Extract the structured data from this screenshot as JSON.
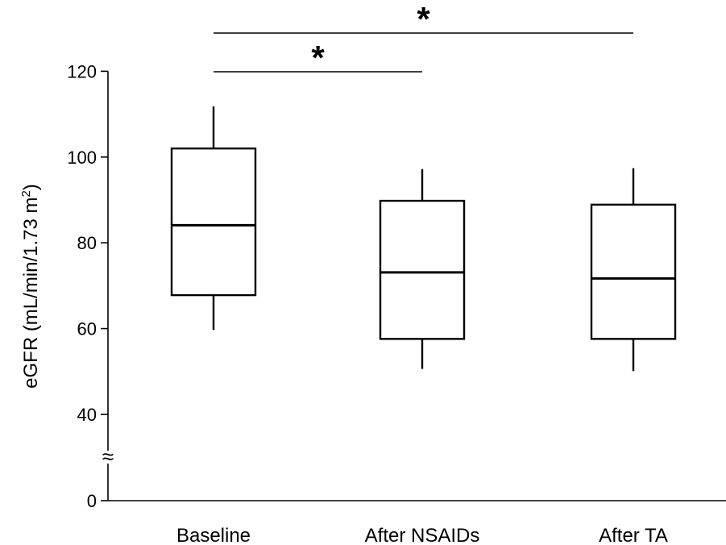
{
  "chart_data": {
    "type": "box",
    "title": "",
    "xlabel": "",
    "ylabel": "eGFR (mL/min/1.73 m²)",
    "ylabel_parts": {
      "main": "eGFR (mL/min/1.73 m",
      "superscript": "2",
      "close": ")"
    },
    "ylim": [
      0,
      120
    ],
    "axis_break": "≈",
    "yticks": [
      0,
      40,
      60,
      80,
      100,
      120
    ],
    "yticks_labels": [
      "0",
      "40",
      "60",
      "80",
      "100",
      "120"
    ],
    "categories": [
      "Baseline",
      "After NSAIDs",
      "After TA"
    ],
    "boxes": [
      {
        "category": "Baseline",
        "whisker_low": 59.7,
        "q1": 67.8,
        "median": 84.1,
        "q3": 102.0,
        "whisker_high": 111.8
      },
      {
        "category": "After NSAIDs",
        "whisker_low": 50.6,
        "q1": 57.6,
        "median": 73.1,
        "q3": 89.8,
        "whisker_high": 97.2
      },
      {
        "category": "After TA",
        "whisker_low": 50.1,
        "q1": 57.6,
        "median": 71.7,
        "q3": 88.9,
        "whisker_high": 97.4
      }
    ],
    "annotations": [
      {
        "from": "Baseline",
        "to": "After TA",
        "label": "*"
      },
      {
        "from": "Baseline",
        "to": "After NSAIDs",
        "label": "*"
      }
    ],
    "grid": false,
    "legend": "none"
  }
}
